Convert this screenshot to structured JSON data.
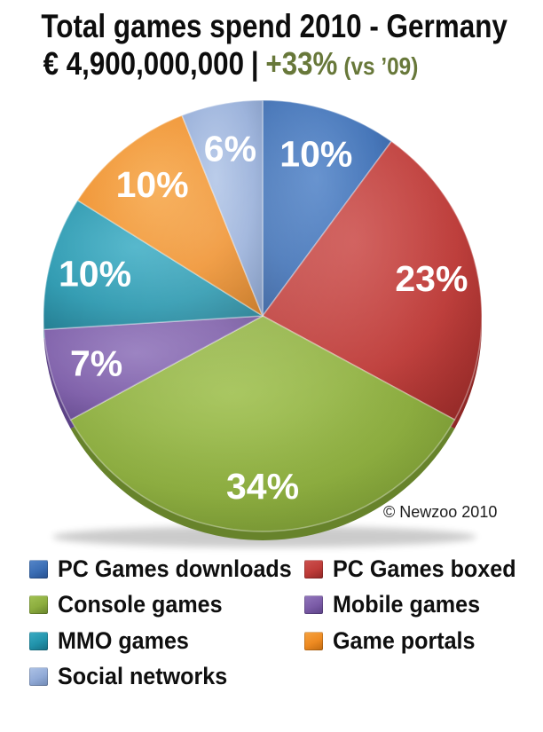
{
  "title": "Total games spend 2010 - Germany",
  "subtitle": {
    "amount": "€ 4,900,000,000",
    "separator": "|",
    "growth": "+33%",
    "growth_note": "(vs ’09)",
    "growth_color": "#68783A"
  },
  "copyright": "© Newzoo 2010",
  "chart_data": {
    "type": "pie",
    "title": "Total games spend 2010 - Germany",
    "total_label": "€ 4,900,000,000",
    "growth_vs_2009": "+33%",
    "start_angle_deg": 0,
    "direction": "clockwise",
    "legend_position": "bottom",
    "unit": "%",
    "categories": [
      "PC Games downloads",
      "PC Games boxed",
      "Console games",
      "Mobile games",
      "MMO games",
      "Game portals",
      "Social networks"
    ],
    "values": [
      10,
      23,
      34,
      7,
      10,
      10,
      6
    ],
    "segments": [
      {
        "label": "PC Games downloads",
        "value": 10,
        "display": "10%",
        "color": "#3A6DB4",
        "light": "#5586C9",
        "dark": "#27508F"
      },
      {
        "label": "PC Games boxed",
        "value": 23,
        "display": "23%",
        "color": "#BE3B38",
        "light": "#CD5350",
        "dark": "#8F2725"
      },
      {
        "label": "Console games",
        "value": 34,
        "display": "34%",
        "color": "#8CAD3E",
        "light": "#A2C254",
        "dark": "#67832B"
      },
      {
        "label": "Mobile games",
        "value": 7,
        "display": "7%",
        "color": "#7B5BA7",
        "light": "#9277BC",
        "dark": "#5C4286"
      },
      {
        "label": "MMO games",
        "value": 10,
        "display": "10%",
        "color": "#2193AB",
        "light": "#3BACC4",
        "dark": "#156E83"
      },
      {
        "label": "Game portals",
        "value": 10,
        "display": "10%",
        "color": "#EE8A21",
        "light": "#F6A341",
        "dark": "#C06A0F"
      },
      {
        "label": "Social networks",
        "value": 6,
        "display": "6%",
        "color": "#91AAD7",
        "light": "#AEC3E6",
        "dark": "#7089B4"
      }
    ]
  }
}
